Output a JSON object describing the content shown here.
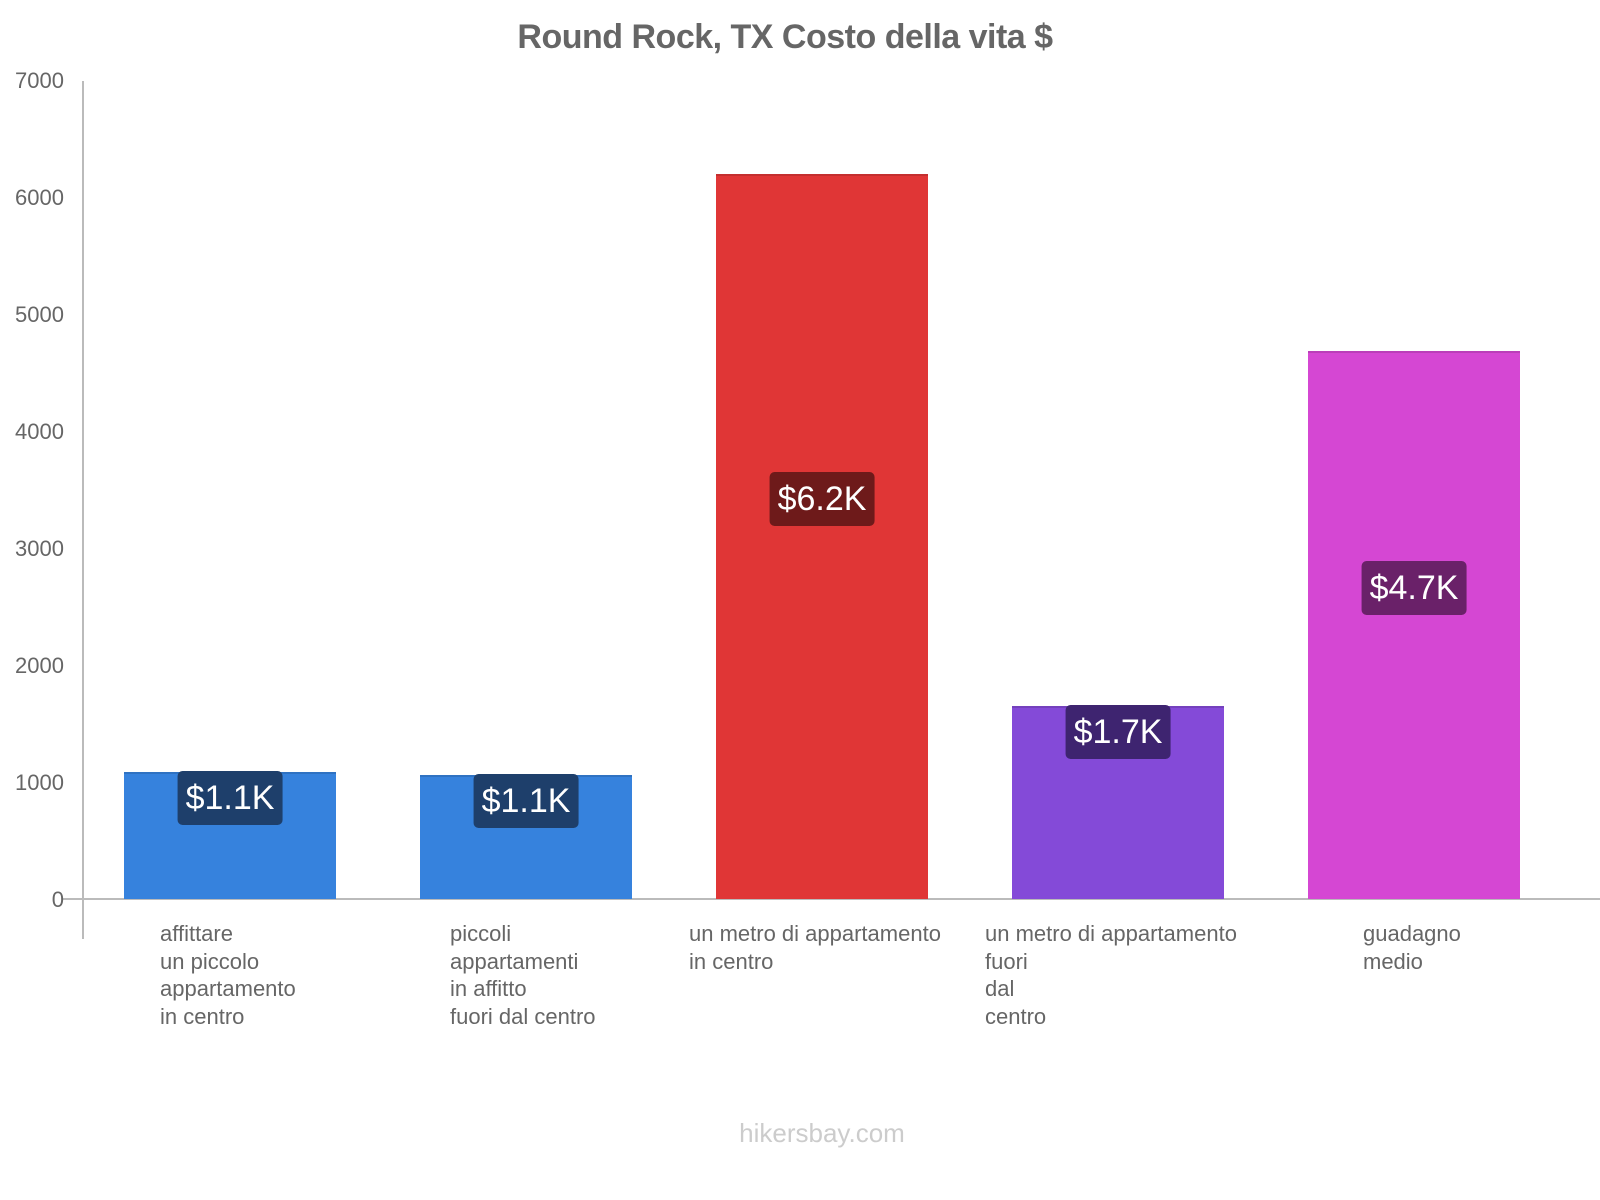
{
  "chart_data": {
    "type": "bar",
    "title": "Round Rock, TX Costo della vita $",
    "xlabel": "",
    "ylabel": "",
    "ylim": [
      0,
      7000
    ],
    "yticks": [
      0,
      1000,
      2000,
      3000,
      4000,
      5000,
      6000,
      7000
    ],
    "grid": false,
    "legend": null,
    "categories": [
      "affittare un piccolo appartamento in centro",
      "piccoli appartamenti in affitto fuori dal centro",
      "un metro di appartamento in centro",
      "un metro di appartamento fuori dal centro",
      "guadagno medio"
    ],
    "category_lines": [
      [
        "affittare",
        "un piccolo",
        "appartamento",
        "in centro"
      ],
      [
        "piccoli",
        "appartamenti",
        "in affitto",
        "fuori dal centro"
      ],
      [
        "un metro di appartamento",
        "in centro"
      ],
      [
        "un metro di appartamento",
        "fuori",
        "dal",
        "centro"
      ],
      [
        "guadagno",
        "medio"
      ]
    ],
    "values": [
      1090,
      1060,
      6200,
      1650,
      4690
    ],
    "data_labels": [
      "$1.1K",
      "$1.1K",
      "$6.2K",
      "$1.7K",
      "$4.7K"
    ],
    "colors": [
      "#3682dd",
      "#3682dd",
      "#e03636",
      "#844ad8",
      "#d547d3"
    ],
    "label_bg_colors": [
      "#1e3f6b",
      "#1e3f6b",
      "#6e1a1a",
      "#3e2470",
      "#6a2169"
    ]
  },
  "title": "Round Rock, TX Costo della vita $",
  "y_axis": {
    "ticks": [
      "0",
      "1000",
      "2000",
      "3000",
      "4000",
      "5000",
      "6000",
      "7000"
    ]
  },
  "watermark": "hikersbay.com"
}
